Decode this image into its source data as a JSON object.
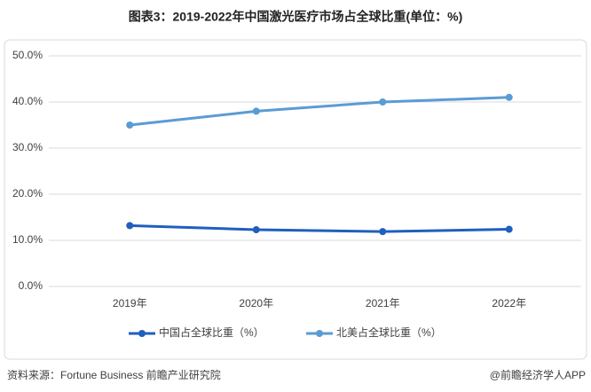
{
  "chart_data": {
    "type": "line",
    "title": "图表3：2019-2022年中国激光医疗市场占全球比重(单位：%)",
    "categories": [
      "2019年",
      "2020年",
      "2021年",
      "2022年"
    ],
    "series": [
      {
        "name": "中国占全球比重（%）",
        "color": "#1f5fbf",
        "values": [
          13.2,
          12.3,
          11.9,
          12.4
        ]
      },
      {
        "name": "北美占全球比重（%）",
        "color": "#5b9bd5",
        "values": [
          35,
          38,
          40,
          41
        ]
      }
    ],
    "ylim": [
      0,
      50
    ],
    "yticks": [
      {
        "value": 0,
        "label": "0.0%"
      },
      {
        "value": 10,
        "label": "10.0%"
      },
      {
        "value": 20,
        "label": "20.0%"
      },
      {
        "value": 30,
        "label": "30.0%"
      },
      {
        "value": 40,
        "label": "40.0%"
      },
      {
        "value": 50,
        "label": "50.0%"
      }
    ],
    "grid": true,
    "legend": "bottom",
    "source": "资料来源：Fortune Business 前瞻产业研究院",
    "credit": "@前瞻经济学人APP"
  }
}
